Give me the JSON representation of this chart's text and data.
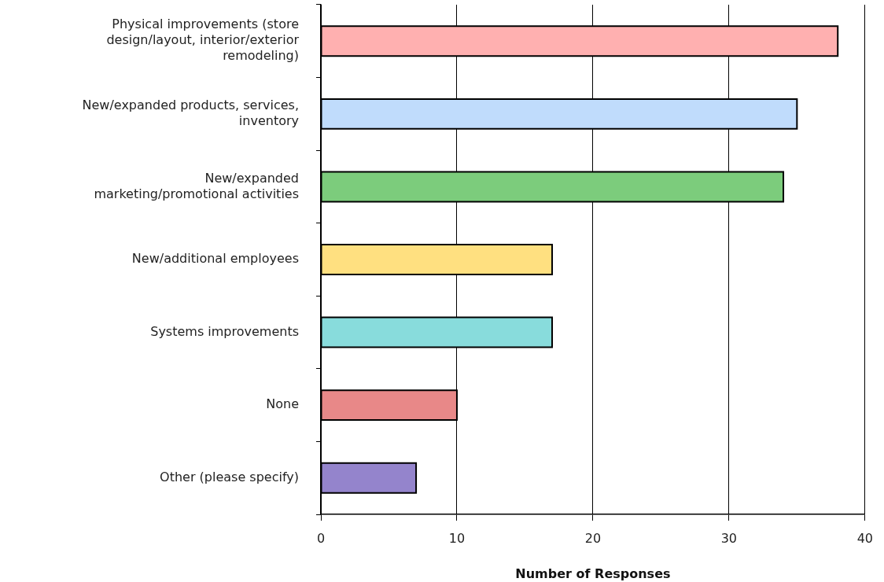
{
  "chart_data": {
    "type": "bar",
    "orientation": "horizontal",
    "xlabel": "Number of Responses",
    "categories": [
      "Physical improvements (store design/layout, interior/exterior remodeling)",
      "New/expanded products, services, inventory",
      "New/expanded marketing/promotional activities",
      "New/additional employees",
      "Systems improvements",
      "None",
      "Other (please specify)"
    ],
    "values": [
      38,
      35,
      34,
      17,
      17,
      10,
      7
    ],
    "colors": [
      "#ffb0b0",
      "#c0dcfc",
      "#7ccc7c",
      "#ffe080",
      "#88dcdc",
      "#e88888",
      "#9484cc"
    ],
    "xlim": [
      0,
      40
    ],
    "xticks": [
      0,
      10,
      20,
      30,
      40
    ],
    "grid": "x"
  }
}
